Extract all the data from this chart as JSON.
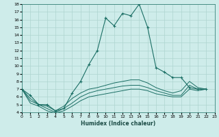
{
  "xlabel": "Humidex (Indice chaleur)",
  "ylabel": "",
  "background_color": "#ceecea",
  "grid_color": "#aed4d0",
  "line_color": "#1a6e64",
  "xlim": [
    0,
    23
  ],
  "ylim": [
    4,
    18
  ],
  "xticks": [
    0,
    1,
    2,
    3,
    4,
    5,
    6,
    7,
    8,
    9,
    10,
    11,
    12,
    13,
    14,
    15,
    16,
    17,
    18,
    19,
    20,
    21,
    22,
    23
  ],
  "yticks": [
    4,
    5,
    6,
    7,
    8,
    9,
    10,
    11,
    12,
    13,
    14,
    15,
    16,
    17,
    18
  ],
  "series": [
    [
      7.0,
      6.2,
      5.0,
      5.0,
      4.2,
      4.5,
      6.5,
      8.0,
      10.2,
      12.0,
      16.2,
      15.2,
      16.8,
      16.5,
      18.0,
      15.0,
      9.8,
      9.2,
      8.5,
      8.5,
      7.2,
      7.0,
      7.0
    ],
    [
      7.0,
      5.8,
      5.0,
      4.8,
      4.2,
      4.8,
      5.8,
      6.5,
      7.0,
      7.2,
      7.5,
      7.8,
      8.0,
      8.2,
      8.2,
      7.8,
      7.2,
      6.8,
      6.5,
      6.8,
      8.0,
      7.2,
      7.0
    ],
    [
      7.0,
      5.5,
      5.0,
      4.5,
      4.0,
      4.5,
      5.2,
      6.0,
      6.5,
      6.8,
      7.0,
      7.2,
      7.4,
      7.5,
      7.5,
      7.2,
      6.8,
      6.5,
      6.2,
      6.2,
      7.5,
      7.0,
      7.0
    ],
    [
      7.0,
      5.2,
      4.8,
      4.2,
      3.9,
      4.2,
      4.8,
      5.5,
      6.0,
      6.2,
      6.4,
      6.6,
      6.8,
      7.0,
      7.0,
      6.8,
      6.4,
      6.2,
      6.0,
      6.0,
      7.0,
      6.8,
      7.0
    ]
  ]
}
